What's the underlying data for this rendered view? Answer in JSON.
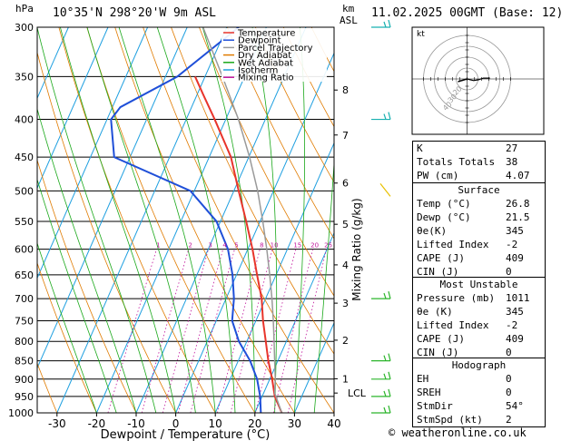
{
  "header": {
    "hpa": "hPa",
    "location": "10°35'N 298°20'W 9m ASL",
    "km": "km",
    "asl": "ASL",
    "datetime": "11.02.2025 00GMT (Base: 12)"
  },
  "footer": {
    "credit": "© weatheronline.co.uk"
  },
  "chart_data": {
    "type": "line",
    "title": "10°35'N 298°20'W 9m ASL",
    "xlabel": "Dewpoint / Temperature (°C)",
    "ylabel": "hPa",
    "y2label": "Mixing Ratio (g/kg)",
    "xlim": [
      -35,
      40
    ],
    "ylim": [
      1000,
      300
    ],
    "y_scale": "log",
    "x_ticks": [
      -30,
      -20,
      -10,
      0,
      10,
      20,
      30,
      40
    ],
    "pressure_levels": [
      300,
      350,
      400,
      450,
      500,
      550,
      600,
      650,
      700,
      750,
      800,
      850,
      900,
      950,
      1000
    ],
    "km_ticks": [
      {
        "label": "8",
        "p": 365
      },
      {
        "label": "7",
        "p": 420
      },
      {
        "label": "6",
        "p": 488
      },
      {
        "label": "5",
        "p": 555
      },
      {
        "label": "4",
        "p": 630
      },
      {
        "label": "3",
        "p": 710
      },
      {
        "label": "2",
        "p": 797
      },
      {
        "label": "1",
        "p": 899
      }
    ],
    "lcl": {
      "label": "LCL",
      "p": 940
    },
    "mixing_ratio_labels": [
      "1",
      "2",
      "3",
      "4",
      "5",
      "8",
      "10",
      "15",
      "20",
      "25"
    ],
    "mixing_ratio_values": [
      1,
      2,
      3,
      4,
      5,
      8,
      10,
      15,
      20,
      25
    ],
    "legend": [
      {
        "name": "Temperature",
        "color": "#e8342b"
      },
      {
        "name": "Dewpoint",
        "color": "#1f4fd8"
      },
      {
        "name": "Parcel Trajectory",
        "color": "#9a9a9a"
      },
      {
        "name": "Dry Adiabat",
        "color": "#e07b00"
      },
      {
        "name": "Wet Adiabat",
        "color": "#1aa81a"
      },
      {
        "name": "Isotherm",
        "color": "#1e9fe0"
      },
      {
        "name": "Mixing Ratio",
        "color": "#c0139b"
      }
    ],
    "series": [
      {
        "name": "Temperature",
        "color": "#e8342b",
        "points": [
          [
            1000,
            26.8
          ],
          [
            950,
            23.2
          ],
          [
            900,
            20.6
          ],
          [
            850,
            17.6
          ],
          [
            800,
            14.8
          ],
          [
            750,
            11.8
          ],
          [
            700,
            9.0
          ],
          [
            650,
            5.2
          ],
          [
            600,
            1.2
          ],
          [
            550,
            -3.5
          ],
          [
            500,
            -8.8
          ],
          [
            450,
            -14.5
          ],
          [
            400,
            -22.8
          ],
          [
            370,
            -28.5
          ],
          [
            350,
            -32.5
          ]
        ]
      },
      {
        "name": "Dewpoint",
        "color": "#1f4fd8",
        "points": [
          [
            1000,
            21.5
          ],
          [
            950,
            19.5
          ],
          [
            900,
            16.8
          ],
          [
            850,
            13.0
          ],
          [
            800,
            8.0
          ],
          [
            750,
            4.0
          ],
          [
            700,
            2.0
          ],
          [
            650,
            -1.0
          ],
          [
            600,
            -5.0
          ],
          [
            550,
            -11.0
          ],
          [
            500,
            -21.0
          ],
          [
            450,
            -44.0
          ],
          [
            400,
            -49.0
          ],
          [
            385,
            -48.0
          ],
          [
            350,
            -37.0
          ],
          [
            300,
            -27.0
          ]
        ]
      },
      {
        "name": "Parcel Trajectory",
        "color": "#9a9a9a",
        "points": [
          [
            1000,
            26.8
          ],
          [
            940,
            22.8
          ],
          [
            900,
            21.4
          ],
          [
            850,
            19.2
          ],
          [
            800,
            16.9
          ],
          [
            750,
            14.4
          ],
          [
            700,
            11.6
          ],
          [
            650,
            8.4
          ],
          [
            600,
            4.8
          ],
          [
            550,
            0.7
          ],
          [
            500,
            -4.0
          ],
          [
            450,
            -9.8
          ],
          [
            400,
            -16.8
          ],
          [
            350,
            -25.6
          ],
          [
            300,
            -36.0
          ]
        ]
      }
    ],
    "wind_barbs_p": [
      300,
      400,
      500,
      700,
      850,
      900,
      950,
      1000
    ]
  },
  "hodograph": {
    "label": "kt",
    "ring_labels": [
      "40",
      "30",
      "20"
    ],
    "points": [
      [
        0,
        0
      ],
      [
        8,
        -2
      ],
      [
        14,
        -1
      ],
      [
        20,
        1
      ],
      [
        28,
        1
      ]
    ],
    "storm": [
      -10,
      -3
    ]
  },
  "indices": {
    "top": [
      {
        "label": "K",
        "value": "27"
      },
      {
        "label": "Totals Totals",
        "value": "38"
      },
      {
        "label": "PW (cm)",
        "value": "4.07"
      }
    ],
    "surface_title": "Surface",
    "surface": [
      {
        "label": "Temp (°C)",
        "value": "26.8"
      },
      {
        "label": "Dewp (°C)",
        "value": "21.5"
      },
      {
        "label": "θe(K)",
        "value": "345"
      },
      {
        "label": "Lifted Index",
        "value": "-2"
      },
      {
        "label": "CAPE (J)",
        "value": "409"
      },
      {
        "label": "CIN (J)",
        "value": "0"
      }
    ],
    "mu_title": "Most Unstable",
    "mu": [
      {
        "label": "Pressure (mb)",
        "value": "1011"
      },
      {
        "label": "θe (K)",
        "value": "345"
      },
      {
        "label": "Lifted Index",
        "value": "-2"
      },
      {
        "label": "CAPE (J)",
        "value": "409"
      },
      {
        "label": "CIN (J)",
        "value": "0"
      }
    ],
    "hodo_title": "Hodograph",
    "hodo": [
      {
        "label": "EH",
        "value": "0"
      },
      {
        "label": "SREH",
        "value": "0"
      },
      {
        "label": "StmDir",
        "value": "54°"
      },
      {
        "label": "StmSpd (kt)",
        "value": "2"
      }
    ]
  }
}
